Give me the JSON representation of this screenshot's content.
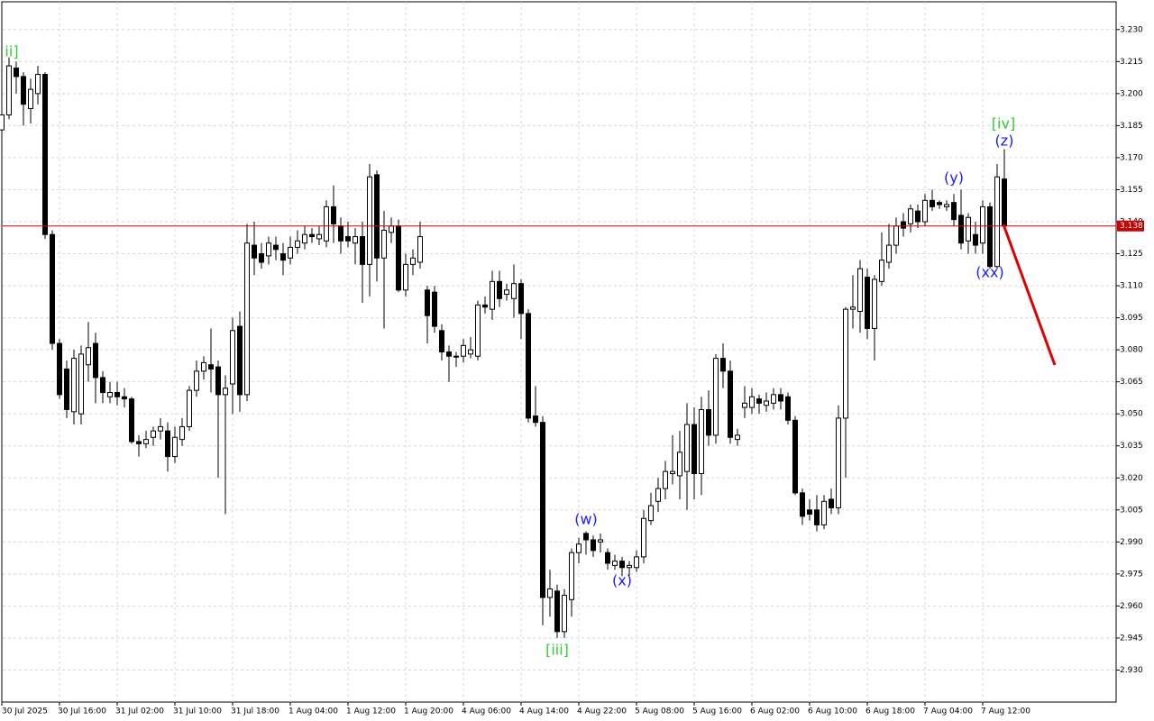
{
  "chart_data": {
    "type": "candlestick",
    "categories": [
      "30 Jul 2025",
      null,
      null,
      null,
      null,
      null,
      null,
      null,
      "30 Jul 16:00",
      null,
      null,
      null,
      null,
      null,
      null,
      null,
      "31 Jul 02:00",
      null,
      null,
      null,
      null,
      null,
      null,
      null,
      "31 Jul 10:00",
      null,
      null,
      null,
      null,
      null,
      null,
      null,
      "31 Jul 18:00",
      null,
      null,
      null,
      null,
      null,
      null,
      null,
      "1 Aug 04:00",
      null,
      null,
      null,
      null,
      null,
      null,
      null,
      "1 Aug 12:00",
      null,
      null,
      null,
      null,
      null,
      null,
      null,
      "1 Aug 20:00",
      null,
      null,
      null,
      null,
      null,
      null,
      null,
      "4 Aug 06:00",
      null,
      null,
      null,
      null,
      null,
      null,
      null,
      "4 Aug 14:00",
      null,
      null,
      null,
      null,
      null,
      null,
      null,
      "4 Aug 22:00",
      null,
      null,
      null,
      null,
      null,
      null,
      null,
      "5 Aug 08:00",
      null,
      null,
      null,
      null,
      null,
      null,
      null,
      "5 Aug 16:00",
      null,
      null,
      null,
      null,
      null,
      null,
      null,
      "6 Aug 02:00",
      null,
      null,
      null,
      null,
      null,
      null,
      null,
      "6 Aug 10:00",
      null,
      null,
      null,
      null,
      null,
      null,
      null,
      "6 Aug 18:00",
      null,
      null,
      null,
      null,
      null,
      null,
      null,
      "7 Aug 04:00",
      null,
      null,
      null,
      null,
      null,
      null,
      null,
      "7 Aug 12:00",
      null,
      null,
      null
    ],
    "open": [
      3.183,
      3.19,
      3.212,
      3.208,
      3.193,
      3.2,
      3.209,
      3.134,
      3.083,
      3.071,
      3.051,
      3.05,
      3.073,
      3.083,
      3.067,
      3.058,
      3.06,
      3.058,
      3.057,
      3.037,
      3.036,
      3.039,
      3.042,
      3.042,
      3.03,
      3.038,
      3.044,
      3.061,
      3.07,
      3.073,
      3.072,
      3.059,
      3.064,
      3.091,
      3.059,
      3.129,
      3.125,
      3.124,
      3.129,
      3.125,
      3.123,
      3.128,
      3.13,
      3.134,
      3.132,
      3.131,
      3.147,
      3.138,
      3.133,
      3.13,
      3.133,
      3.12,
      3.162,
      3.123,
      3.135,
      3.138,
      3.108,
      3.12,
      3.121,
      3.108,
      3.107,
      3.089,
      3.079,
      3.077,
      3.077,
      3.078,
      3.077,
      3.101,
      3.099,
      3.112,
      3.106,
      3.104,
      3.111,
      3.097,
      3.049,
      3.046,
      2.964,
      2.967,
      2.948,
      2.963,
      2.985,
      2.994,
      2.991,
      2.99,
      2.985,
      2.979,
      2.981,
      2.978,
      2.978,
      2.983,
      3.0,
      3.009,
      3.015,
      3.022,
      3.021,
      3.023,
      3.045,
      3.022,
      3.052,
      3.04,
      3.076,
      3.07,
      3.038,
      3.053,
      3.053,
      3.057,
      3.054,
      3.055,
      3.059,
      3.058,
      3.047,
      3.013,
      3.005,
      3.005,
      2.998,
      3.01,
      3.006,
      3.048,
      3.099,
      3.098,
      3.114,
      3.09,
      3.112,
      3.121,
      3.129,
      3.14,
      3.139,
      3.145,
      3.14,
      3.15,
      3.149,
      3.147,
      3.149,
      3.143,
      3.131,
      3.134,
      3.13,
      3.147,
      3.119,
      3.16
    ],
    "high": [
      3.195,
      3.217,
      3.215,
      3.21,
      3.207,
      3.213,
      3.21,
      3.136,
      3.085,
      3.075,
      3.08,
      3.082,
      3.093,
      3.088,
      3.07,
      3.065,
      3.065,
      3.062,
      3.058,
      3.04,
      3.042,
      3.044,
      3.048,
      3.046,
      3.044,
      3.048,
      3.063,
      3.075,
      3.077,
      3.09,
      3.075,
      3.068,
      3.095,
      3.098,
      3.139,
      3.14,
      3.13,
      3.133,
      3.133,
      3.13,
      3.133,
      3.136,
      3.138,
      3.137,
      3.138,
      3.15,
      3.157,
      3.142,
      3.14,
      3.137,
      3.14,
      3.167,
      3.164,
      3.145,
      3.142,
      3.141,
      3.125,
      3.127,
      3.14,
      3.11,
      3.11,
      3.092,
      3.082,
      3.079,
      3.085,
      3.086,
      3.103,
      3.105,
      3.117,
      3.117,
      3.111,
      3.12,
      3.113,
      3.099,
      3.063,
      3.049,
      2.977,
      2.97,
      2.968,
      2.987,
      2.992,
      2.995,
      2.993,
      2.994,
      2.987,
      2.984,
      2.983,
      2.981,
      2.986,
      3.005,
      3.013,
      3.02,
      3.028,
      3.04,
      3.042,
      3.055,
      3.053,
      3.058,
      3.061,
      3.078,
      3.083,
      3.075,
      3.043,
      3.063,
      3.062,
      3.059,
      3.06,
      3.062,
      3.062,
      3.06,
      3.049,
      3.015,
      3.01,
      3.012,
      3.012,
      3.015,
      3.054,
      3.1,
      3.115,
      3.122,
      3.118,
      3.115,
      3.135,
      3.139,
      3.142,
      3.144,
      3.148,
      3.148,
      3.153,
      3.155,
      3.15,
      3.15,
      3.153,
      3.155,
      3.144,
      3.14,
      3.15,
      3.149,
      3.167,
      3.174
    ],
    "low": [
      3.18,
      3.188,
      3.2,
      3.185,
      3.186,
      3.195,
      3.132,
      3.08,
      3.057,
      3.048,
      3.045,
      3.045,
      3.065,
      3.055,
      3.055,
      3.055,
      3.054,
      3.053,
      3.036,
      3.03,
      3.034,
      3.035,
      3.038,
      3.023,
      3.027,
      3.035,
      3.042,
      3.058,
      3.066,
      3.06,
      3.02,
      3.003,
      3.05,
      3.051,
      3.056,
      3.115,
      3.118,
      3.12,
      3.122,
      3.115,
      3.12,
      3.125,
      3.127,
      3.13,
      3.129,
      3.128,
      3.13,
      3.125,
      3.128,
      3.12,
      3.102,
      3.105,
      3.112,
      3.09,
      3.13,
      3.107,
      3.105,
      3.115,
      3.118,
      3.083,
      3.088,
      3.075,
      3.065,
      3.072,
      3.074,
      3.076,
      3.075,
      3.097,
      3.094,
      3.1,
      3.103,
      3.095,
      3.085,
      3.046,
      3.044,
      2.951,
      2.955,
      2.945,
      2.945,
      2.955,
      2.98,
      2.984,
      2.983,
      2.985,
      2.977,
      2.977,
      2.974,
      2.974,
      2.976,
      2.98,
      2.998,
      3.004,
      3.01,
      3.017,
      3.01,
      3.005,
      3.01,
      3.012,
      3.035,
      3.036,
      3.062,
      3.036,
      3.035,
      3.048,
      3.05,
      3.05,
      3.051,
      3.052,
      3.052,
      3.045,
      3.012,
      2.998,
      3.0,
      2.995,
      2.996,
      3.003,
      3.003,
      3.02,
      3.09,
      3.088,
      3.085,
      3.075,
      3.11,
      3.118,
      3.125,
      3.133,
      3.135,
      3.137,
      3.138,
      3.145,
      3.146,
      3.145,
      3.138,
      3.127,
      3.125,
      3.125,
      3.125,
      3.118,
      3.118,
      3.138
    ],
    "close": [
      3.19,
      3.213,
      3.208,
      3.195,
      3.202,
      3.209,
      3.134,
      3.083,
      3.059,
      3.052,
      3.076,
      3.078,
      3.081,
      3.067,
      3.06,
      3.06,
      3.058,
      3.057,
      3.037,
      3.036,
      3.038,
      3.042,
      3.044,
      3.03,
      3.039,
      3.044,
      3.061,
      3.07,
      3.074,
      3.071,
      3.059,
      3.062,
      3.089,
      3.059,
      3.13,
      3.123,
      3.121,
      3.13,
      3.127,
      3.122,
      3.128,
      3.131,
      3.134,
      3.133,
      3.134,
      3.147,
      3.139,
      3.131,
      3.131,
      3.133,
      3.12,
      3.161,
      3.123,
      3.136,
      3.138,
      3.108,
      3.12,
      3.123,
      3.133,
      3.096,
      3.091,
      3.079,
      3.077,
      3.077,
      3.082,
      3.08,
      3.101,
      3.1,
      3.112,
      3.104,
      3.108,
      3.111,
      3.097,
      3.048,
      3.046,
      2.964,
      2.968,
      2.948,
      2.965,
      2.985,
      2.989,
      2.991,
      2.986,
      2.991,
      2.98,
      2.981,
      2.978,
      2.979,
      2.983,
      3.001,
      3.007,
      3.015,
      3.023,
      3.023,
      3.032,
      3.045,
      3.022,
      3.052,
      3.04,
      3.076,
      3.07,
      3.039,
      3.04,
      3.055,
      3.058,
      3.055,
      3.056,
      3.059,
      3.056,
      3.047,
      3.013,
      3.002,
      3.003,
      2.998,
      3.009,
      3.006,
      3.048,
      3.099,
      3.1,
      3.118,
      3.09,
      3.113,
      3.122,
      3.129,
      3.138,
      3.137,
      3.146,
      3.14,
      3.15,
      3.147,
      3.148,
      3.148,
      3.141,
      3.13,
      3.142,
      3.129,
      3.147,
      3.119,
      3.161,
      3.138
    ],
    "up_color": "#ffffff",
    "down_color": "#000000",
    "ylim": [
      2.915,
      3.243
    ],
    "yticks": [
      {
        "value": 3.23,
        "label": "3.230"
      },
      3.215,
      {
        "value": 3.2,
        "label": "3.200"
      },
      3.185,
      {
        "value": 3.17,
        "label": "3.170"
      },
      3.155,
      {
        "value": 3.14,
        "label": "3.140"
      },
      3.125,
      {
        "value": 3.11,
        "label": "3.110"
      },
      3.095,
      {
        "value": 3.08,
        "label": "3.080"
      },
      3.065,
      {
        "value": 3.05,
        "label": "3.050"
      },
      3.035,
      {
        "value": 3.02,
        "label": "3.020"
      },
      3.005,
      {
        "value": 2.99,
        "label": "2.990"
      },
      2.975,
      {
        "value": 2.96,
        "label": "2.960"
      },
      2.945,
      {
        "value": 2.93,
        "label": "2.930"
      }
    ],
    "grid": true,
    "current_price": 3.138,
    "current_price_color": "#c80000",
    "annotations": [
      {
        "text": "ii]",
        "color": "#32cd32"
      },
      {
        "text": "(w)",
        "color": "#1a1aff"
      },
      {
        "text": "(x)",
        "color": "#1a1aff"
      },
      {
        "text": "[iii]",
        "color": "#32cd32"
      },
      {
        "text": "(y)",
        "color": "#1a1aff"
      },
      {
        "text": "(xx)",
        "color": "#1a1aff"
      },
      {
        "text": "(z)",
        "color": "#1a1aff"
      },
      {
        "text": "[iv]",
        "color": "#32cd32"
      }
    ]
  }
}
